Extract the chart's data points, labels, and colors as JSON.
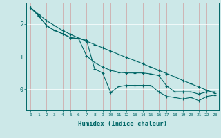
{
  "xlabel": "Humidex (Indice chaleur)",
  "ylabel": "",
  "bg_color": "#cce8e8",
  "line_color": "#006666",
  "grid_color": "#b0d0d0",
  "xlim": [
    -0.5,
    23.5
  ],
  "ylim": [
    -0.65,
    2.65
  ],
  "xticks": [
    0,
    1,
    2,
    3,
    4,
    5,
    6,
    7,
    8,
    9,
    10,
    11,
    12,
    13,
    14,
    15,
    16,
    17,
    18,
    19,
    20,
    21,
    22,
    23
  ],
  "yticks": [
    0.0,
    1.0,
    2.0
  ],
  "ytick_labels": [
    "-0",
    "1",
    "2"
  ],
  "line1_x": [
    0,
    1,
    2,
    3,
    4,
    5,
    6,
    7,
    8,
    9,
    10,
    11,
    12,
    13,
    14,
    15,
    16,
    17,
    18,
    19,
    20,
    21,
    22,
    23
  ],
  "line1_y": [
    2.5,
    2.3,
    2.1,
    1.95,
    1.8,
    1.68,
    1.57,
    1.47,
    1.37,
    1.27,
    1.17,
    1.07,
    0.97,
    0.88,
    0.78,
    0.68,
    0.58,
    0.48,
    0.38,
    0.27,
    0.17,
    0.07,
    -0.03,
    -0.12
  ],
  "line2_x": [
    0,
    1,
    2,
    3,
    4,
    5,
    6,
    7,
    8,
    9,
    10,
    11,
    12,
    13,
    14,
    15,
    16,
    17,
    18,
    19,
    20,
    21,
    22,
    23
  ],
  "line2_y": [
    2.5,
    2.25,
    1.95,
    1.8,
    1.7,
    1.58,
    1.55,
    1.02,
    0.82,
    0.68,
    0.58,
    0.52,
    0.5,
    0.5,
    0.5,
    0.47,
    0.42,
    0.1,
    -0.08,
    -0.08,
    -0.08,
    -0.15,
    -0.08,
    -0.08
  ],
  "line3_x": [
    0,
    1,
    2,
    3,
    4,
    5,
    6,
    7,
    8,
    9,
    10,
    11,
    12,
    13,
    14,
    15,
    16,
    17,
    18,
    19,
    20,
    21,
    22,
    23
  ],
  "line3_y": [
    2.5,
    2.25,
    1.95,
    1.8,
    1.7,
    1.58,
    1.55,
    1.5,
    0.62,
    0.5,
    -0.1,
    0.08,
    0.12,
    0.12,
    0.12,
    0.12,
    -0.08,
    -0.22,
    -0.25,
    -0.3,
    -0.25,
    -0.35,
    -0.22,
    -0.18
  ]
}
